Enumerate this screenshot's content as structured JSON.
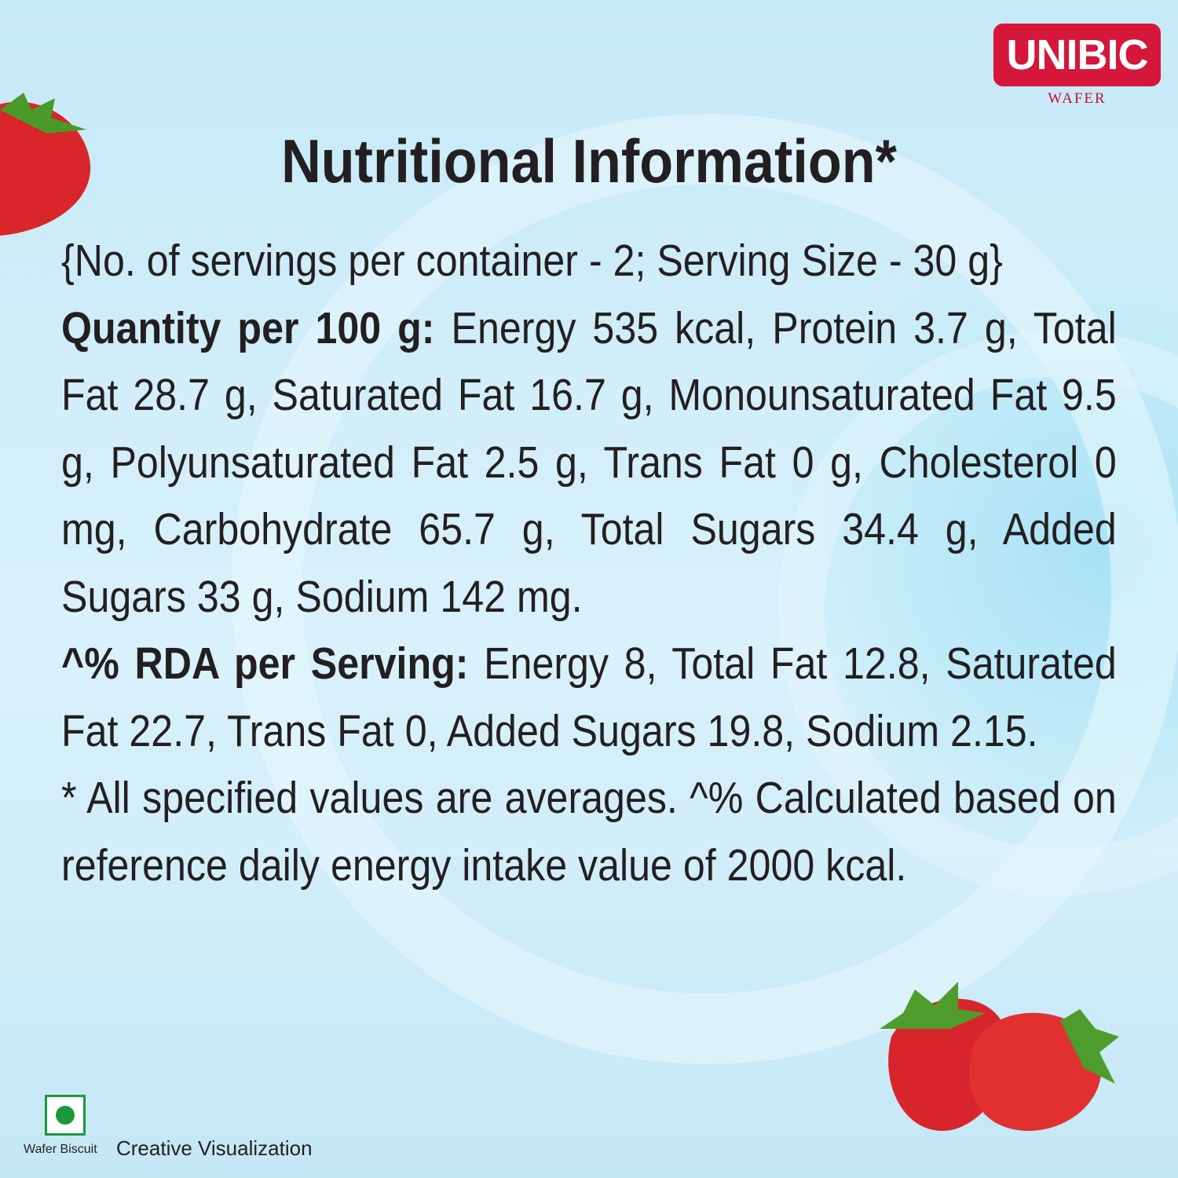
{
  "brand": {
    "name": "UNIBIC",
    "sub": "WAFER"
  },
  "title": "Nutritional Information*",
  "servings": "{No. of servings per container - 2; Serving Size - 30 g}",
  "quantity": {
    "label": "Quantity per 100 g:",
    "text": "Energy 535 kcal, Protein 3.7 g, Total Fat 28.7 g, Saturated Fat 16.7 g, Monounsaturated Fat 9.5 g, Polyunsaturated Fat 2.5 g, Trans Fat 0 g, Cholesterol 0 mg, Carbohydrate 65.7 g, Total Sugars 34.4 g, Added Sugars 33 g, Sodium 142 mg."
  },
  "rda": {
    "label": "^% RDA per Serving:",
    "text": "Energy 8, Total Fat 12.8, Saturated Fat 22.7, Trans Fat 0, Added Sugars 19.8, Sodium 2.15."
  },
  "footnote": "* All specified values are averages. ^% Calculated based on reference daily energy intake value of 2000 kcal.",
  "veg_label": "Wafer Biscuit",
  "disclaimer": "Creative Visualization"
}
